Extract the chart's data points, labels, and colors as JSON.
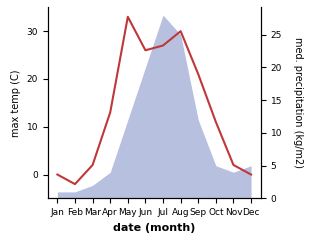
{
  "months": [
    "Jan",
    "Feb",
    "Mar",
    "Apr",
    "May",
    "Jun",
    "Jul",
    "Aug",
    "Sep",
    "Oct",
    "Nov",
    "Dec"
  ],
  "temperature": [
    0.0,
    -2.0,
    2.0,
    13.0,
    33.0,
    26.0,
    27.0,
    30.0,
    21.0,
    11.0,
    2.0,
    0.0
  ],
  "precipitation": [
    1.0,
    1.0,
    2.0,
    4.0,
    12.0,
    20.0,
    28.0,
    25.0,
    12.0,
    5.0,
    4.0,
    5.0
  ],
  "temp_color": "#c0373a",
  "precip_fill_color": "#b8c0e0",
  "ylabel_left": "max temp (C)",
  "ylabel_right": "med. precipitation (kg/m2)",
  "xlabel": "date (month)",
  "ylim_left": [
    -5,
    35
  ],
  "ylim_right": [
    0,
    29.2
  ],
  "yticks_left": [
    0,
    10,
    20,
    30
  ],
  "yticks_right": [
    0,
    5,
    10,
    15,
    20,
    25
  ],
  "background_color": "#ffffff",
  "axis_fontsize": 7,
  "tick_fontsize": 6.5,
  "xlabel_fontsize": 8
}
